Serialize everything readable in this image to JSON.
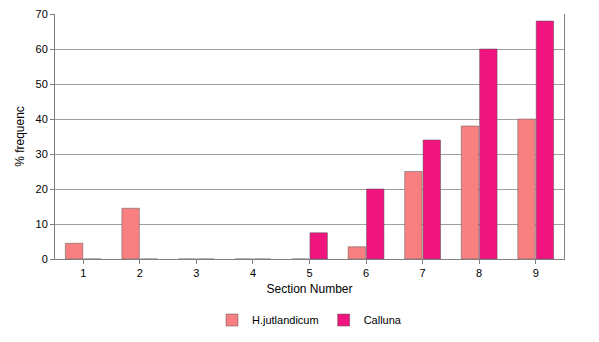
{
  "chart_data": {
    "type": "bar",
    "x_label": "Section Number",
    "y_label": "% frequenc",
    "categories": [
      "1",
      "2",
      "3",
      "4",
      "5",
      "6",
      "7",
      "8",
      "9"
    ],
    "series": [
      {
        "name": "H.jutlandicum",
        "color": "#f98080",
        "values": [
          4.5,
          14.5,
          0,
          0,
          0,
          3.5,
          25,
          38,
          40
        ]
      },
      {
        "name": "Calluna",
        "color": "#f0147f",
        "values": [
          0,
          0,
          0,
          0,
          7.5,
          20,
          34,
          60,
          68
        ]
      }
    ],
    "ylim": [
      0,
      70
    ],
    "yticks": [
      0,
      10,
      20,
      30,
      40,
      50,
      60,
      70
    ],
    "grid": true,
    "legend": "bottom"
  }
}
